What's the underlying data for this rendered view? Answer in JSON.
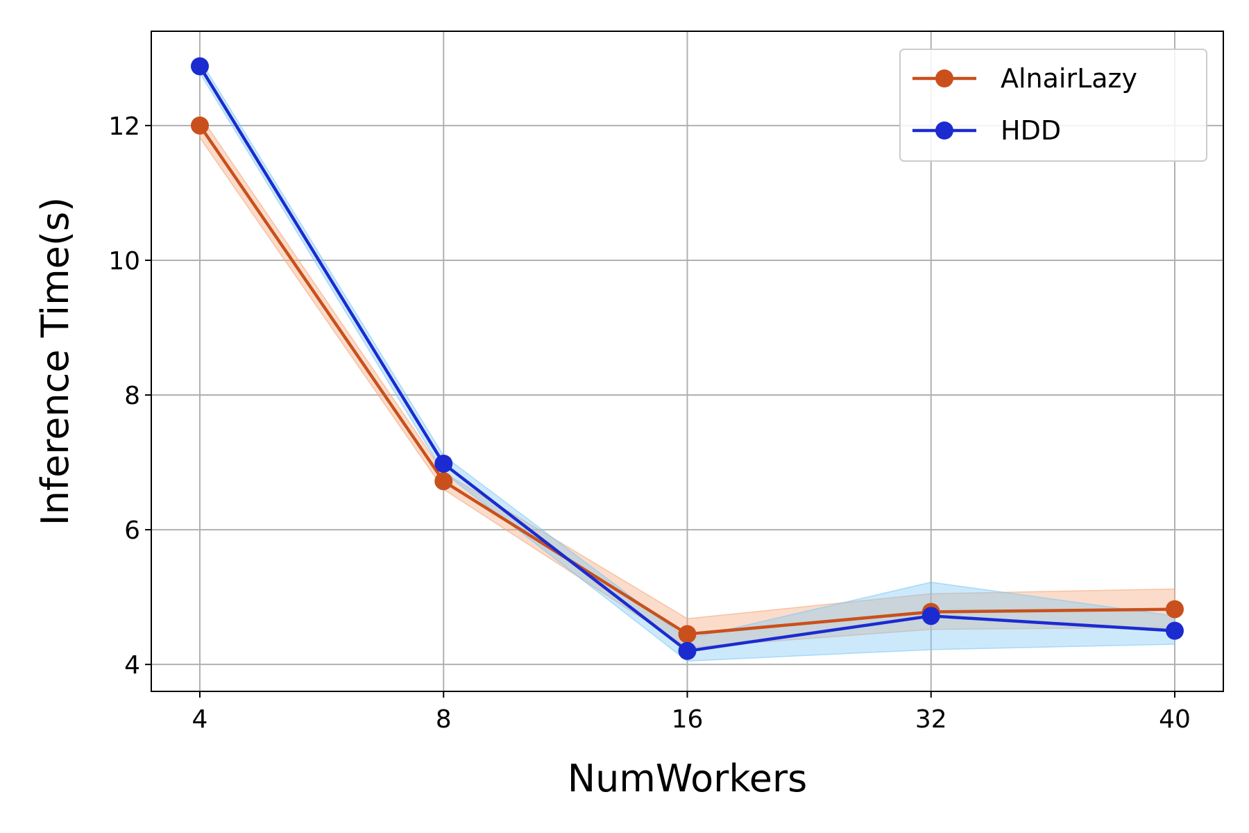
{
  "chart_data": {
    "type": "line",
    "title": "",
    "xlabel": "NumWorkers",
    "ylabel": "Inference Time(s)",
    "categories": [
      "4",
      "8",
      "16",
      "32",
      "40"
    ],
    "ylim": [
      3.6,
      13.4
    ],
    "yticks": [
      4,
      6,
      8,
      10,
      12
    ],
    "grid": true,
    "legend_position": "top-right",
    "series": [
      {
        "name": "AlnairLazy",
        "color": "#c9501c",
        "band_color": "#f4a77a",
        "values": [
          12.0,
          6.72,
          4.45,
          4.78,
          4.82
        ],
        "lower": [
          11.82,
          6.6,
          4.25,
          4.52,
          4.55
        ],
        "upper": [
          12.15,
          6.85,
          4.68,
          5.05,
          5.12
        ]
      },
      {
        "name": "HDD",
        "color": "#1b2bd0",
        "band_color": "#7fc8f5",
        "values": [
          12.88,
          6.98,
          4.2,
          4.72,
          4.5
        ],
        "lower": [
          12.78,
          6.85,
          4.05,
          4.22,
          4.3
        ],
        "upper": [
          12.98,
          7.1,
          4.38,
          5.22,
          4.72
        ]
      }
    ]
  }
}
